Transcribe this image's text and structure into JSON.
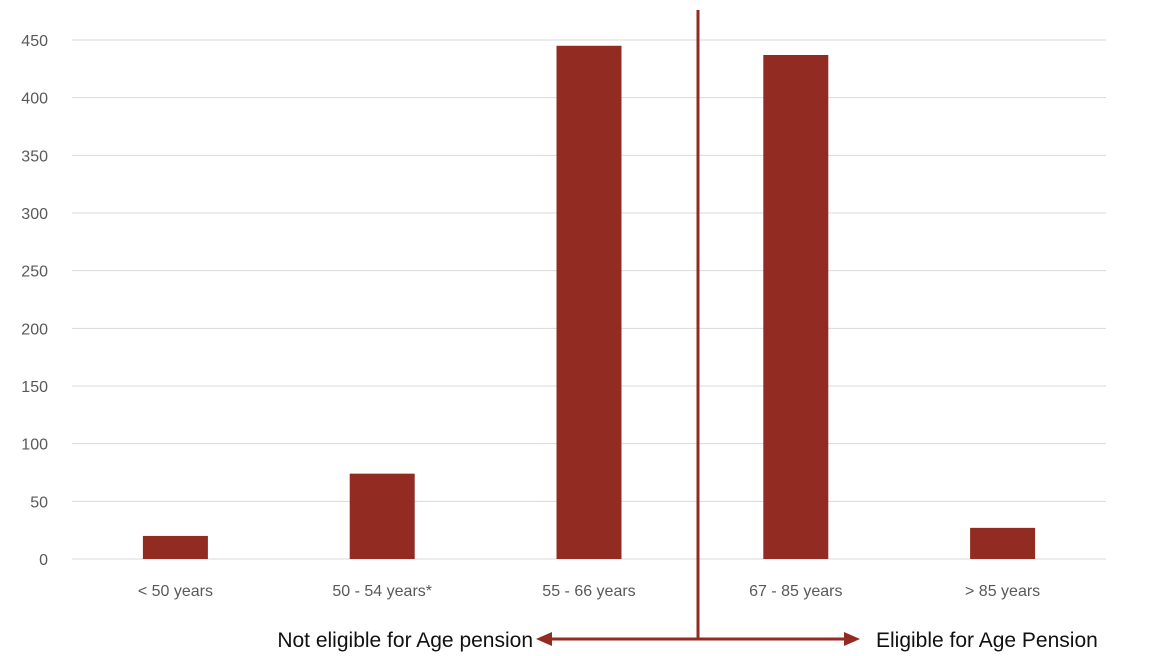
{
  "chart_data": {
    "type": "bar",
    "categories": [
      "< 50 years",
      "50 - 54 years*",
      "55 - 66 years",
      "67 - 85 years",
      "> 85 years"
    ],
    "values": [
      20,
      74,
      445,
      437,
      27
    ],
    "ylim": [
      0,
      450
    ],
    "yticks": [
      0,
      50,
      100,
      150,
      200,
      250,
      300,
      350,
      400,
      450
    ],
    "grid": true,
    "bar_color": "#922B21",
    "divider_color": "#922B21",
    "title": "",
    "xlabel": "",
    "ylabel": "",
    "annotations": {
      "left": "Not eligible for Age pension",
      "right": "Eligible for Age Pension"
    }
  }
}
